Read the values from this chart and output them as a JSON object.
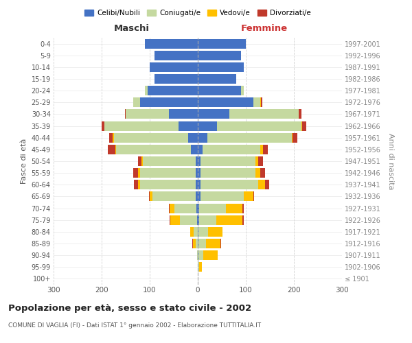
{
  "age_groups": [
    "100+",
    "95-99",
    "90-94",
    "85-89",
    "80-84",
    "75-79",
    "70-74",
    "65-69",
    "60-64",
    "55-59",
    "50-54",
    "45-49",
    "40-44",
    "35-39",
    "30-34",
    "25-29",
    "20-24",
    "15-19",
    "10-14",
    "5-9",
    "0-4"
  ],
  "birth_years": [
    "≤ 1901",
    "1902-1906",
    "1907-1911",
    "1912-1916",
    "1917-1921",
    "1922-1926",
    "1927-1931",
    "1932-1936",
    "1937-1941",
    "1942-1946",
    "1947-1951",
    "1952-1956",
    "1957-1961",
    "1962-1966",
    "1967-1971",
    "1972-1976",
    "1977-1981",
    "1982-1986",
    "1987-1991",
    "1992-1996",
    "1997-2001"
  ],
  "maschi": {
    "celibi": [
      0,
      0,
      0,
      0,
      0,
      2,
      3,
      5,
      5,
      5,
      5,
      15,
      20,
      40,
      60,
      120,
      105,
      90,
      100,
      90,
      110
    ],
    "coniugati": [
      0,
      0,
      2,
      5,
      8,
      35,
      45,
      90,
      115,
      115,
      110,
      155,
      155,
      155,
      90,
      15,
      5,
      0,
      0,
      0,
      0
    ],
    "vedovi": [
      0,
      0,
      0,
      5,
      8,
      20,
      10,
      5,
      5,
      5,
      2,
      2,
      2,
      0,
      0,
      0,
      0,
      0,
      0,
      0,
      0
    ],
    "divorziati": [
      0,
      0,
      0,
      2,
      0,
      2,
      2,
      2,
      8,
      10,
      8,
      15,
      8,
      5,
      2,
      0,
      0,
      0,
      0,
      0,
      0
    ]
  },
  "femmine": {
    "nubili": [
      0,
      0,
      2,
      2,
      2,
      3,
      3,
      5,
      5,
      5,
      5,
      10,
      20,
      40,
      65,
      115,
      90,
      80,
      95,
      90,
      100
    ],
    "coniugate": [
      0,
      3,
      10,
      15,
      20,
      35,
      55,
      90,
      120,
      115,
      115,
      120,
      175,
      175,
      145,
      15,
      5,
      0,
      0,
      0,
      0
    ],
    "vedove": [
      0,
      5,
      30,
      30,
      30,
      55,
      35,
      20,
      15,
      10,
      5,
      5,
      2,
      2,
      0,
      2,
      0,
      0,
      0,
      0,
      0
    ],
    "divorziate": [
      0,
      0,
      0,
      2,
      0,
      2,
      2,
      2,
      8,
      10,
      10,
      10,
      10,
      8,
      5,
      2,
      0,
      0,
      0,
      0,
      0
    ]
  },
  "colors": {
    "celibi": "#4472c4",
    "coniugati": "#c5d9a0",
    "vedovi": "#ffc000",
    "divorziati": "#c0392b"
  },
  "title": "Popolazione per età, sesso e stato civile - 2002",
  "subtitle": "COMUNE DI VAGLIA (FI) - Dati ISTAT 1° gennaio 2002 - Elaborazione TUTTITALIA.IT",
  "xlabel_left": "Maschi",
  "xlabel_right": "Femmine",
  "ylabel_left": "Fasce di età",
  "ylabel_right": "Anni di nascita",
  "xlim": 300,
  "legend_labels": [
    "Celibi/Nubili",
    "Coniugati/e",
    "Vedovi/e",
    "Divorziati/e"
  ],
  "bg_color": "#ffffff",
  "grid_color": "#cccccc"
}
